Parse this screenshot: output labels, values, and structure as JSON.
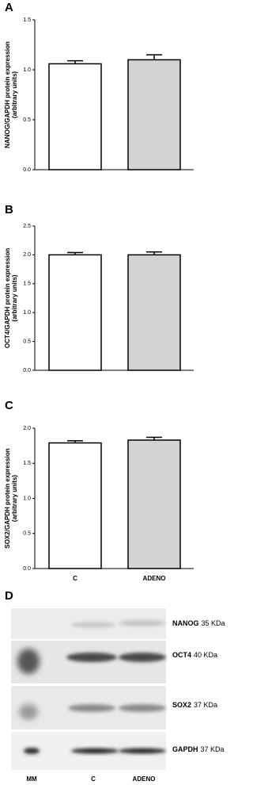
{
  "chart_data": [
    {
      "type": "bar",
      "panel": "A",
      "ylabel": [
        "NANOG/GAPDH protein expression",
        "(arbitrary units)"
      ],
      "categories": [
        null,
        null
      ],
      "values": [
        1.06,
        1.1
      ],
      "errors": [
        0.03,
        0.05
      ],
      "colors": [
        "#ffffff",
        "#d3d3d3"
      ],
      "ylim": [
        0,
        1.5
      ],
      "yticks": [
        {
          "value": 0,
          "label": "0.0"
        },
        0.5,
        {
          "value": 1,
          "label": "1.0"
        },
        1.5
      ]
    },
    {
      "type": "bar",
      "panel": "B",
      "ylabel": [
        "OCT4/GAPDH protein expression",
        "(arbitrary units)"
      ],
      "categories": [
        null,
        null
      ],
      "values": [
        2.0,
        2.0
      ],
      "errors": [
        0.04,
        0.05
      ],
      "colors": [
        "#ffffff",
        "#d3d3d3"
      ],
      "ylim": [
        0,
        2.5
      ],
      "yticks": [
        {
          "value": 0,
          "label": "0.0"
        },
        0.5,
        {
          "value": 1,
          "label": "1.0"
        },
        1.5,
        {
          "value": 2,
          "label": "2.0"
        },
        2.5
      ]
    },
    {
      "type": "bar",
      "panel": "C",
      "ylabel": [
        "SOX2/GAPDH protein expression",
        "(arbitrary units)"
      ],
      "categories": [
        "C",
        "ADENO"
      ],
      "values": [
        1.79,
        1.83
      ],
      "errors": [
        0.03,
        0.04
      ],
      "colors": [
        "#ffffff",
        "#d3d3d3"
      ],
      "ylim": [
        0,
        2
      ],
      "yticks": [
        {
          "value": 0,
          "label": "0.0"
        },
        0.5,
        {
          "value": 1,
          "label": "1.0"
        },
        1.5,
        {
          "value": 2,
          "label": "2.0"
        }
      ]
    }
  ],
  "blot": {
    "panel": "D",
    "lanes": [
      "MM",
      "C",
      "ADENO"
    ],
    "rows": [
      {
        "protein": "NANOG",
        "size": "35 KDa"
      },
      {
        "protein": "OCT4",
        "size": "40 KDa"
      },
      {
        "protein": "SOX2",
        "size": "37 KDa"
      },
      {
        "protein": "GAPDH",
        "size": "37 KDa"
      }
    ]
  }
}
